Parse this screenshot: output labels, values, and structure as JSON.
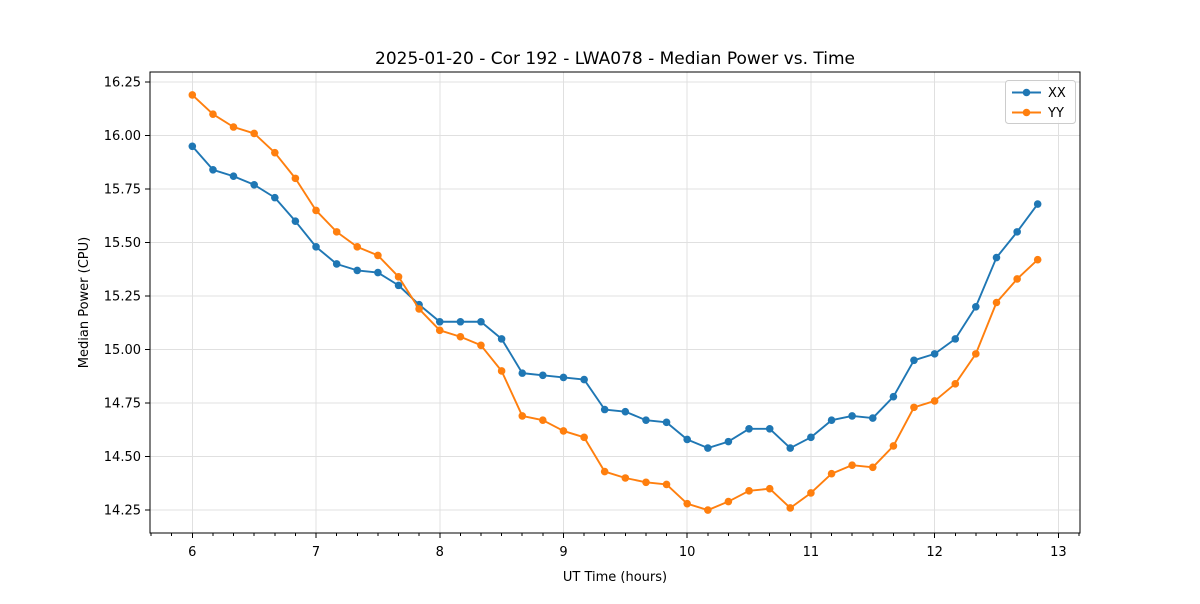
{
  "chart_data": {
    "type": "line",
    "title": "2025-01-20 - Cor 192 - LWA078 - Median Power vs. Time",
    "xlabel": "UT Time (hours)",
    "ylabel": "Median Power (CPU)",
    "xlim": [
      5.658,
      13.175
    ],
    "ylim": [
      14.143,
      16.297
    ],
    "x_ticks": [
      6,
      7,
      8,
      9,
      10,
      11,
      12,
      13
    ],
    "y_ticks": [
      14.25,
      14.5,
      14.75,
      15.0,
      15.25,
      15.5,
      15.75,
      16.0,
      16.25
    ],
    "x_minor_tick_step": 0.166667,
    "grid": true,
    "legend_position": "upper right",
    "x": [
      6.0,
      6.167,
      6.333,
      6.5,
      6.667,
      6.833,
      7.0,
      7.167,
      7.333,
      7.5,
      7.667,
      7.833,
      8.0,
      8.167,
      8.333,
      8.5,
      8.667,
      8.833,
      9.0,
      9.167,
      9.333,
      9.5,
      9.667,
      9.833,
      10.0,
      10.167,
      10.333,
      10.5,
      10.667,
      10.833,
      11.0,
      11.167,
      11.333,
      11.5,
      11.667,
      11.833,
      12.0,
      12.167,
      12.333,
      12.5,
      12.667,
      12.833
    ],
    "series": [
      {
        "name": "XX",
        "color": "#1f77b4",
        "values": [
          15.95,
          15.84,
          15.81,
          15.77,
          15.71,
          15.6,
          15.48,
          15.4,
          15.37,
          15.36,
          15.3,
          15.21,
          15.13,
          15.13,
          15.13,
          15.05,
          14.89,
          14.88,
          14.87,
          14.86,
          14.72,
          14.71,
          14.67,
          14.66,
          14.58,
          14.54,
          14.57,
          14.63,
          14.63,
          14.54,
          14.59,
          14.67,
          14.69,
          14.68,
          14.78,
          14.95,
          14.98,
          15.05,
          15.2,
          15.43,
          15.55,
          15.68
        ]
      },
      {
        "name": "YY",
        "color": "#ff7f0e",
        "values": [
          16.19,
          16.1,
          16.04,
          16.01,
          15.92,
          15.8,
          15.65,
          15.55,
          15.48,
          15.44,
          15.34,
          15.19,
          15.09,
          15.06,
          15.02,
          14.9,
          14.69,
          14.67,
          14.62,
          14.59,
          14.43,
          14.4,
          14.38,
          14.37,
          14.28,
          14.25,
          14.29,
          14.34,
          14.35,
          14.26,
          14.33,
          14.42,
          14.46,
          14.45,
          14.55,
          14.73,
          14.76,
          14.84,
          14.98,
          15.22,
          15.33,
          15.42
        ]
      }
    ]
  }
}
